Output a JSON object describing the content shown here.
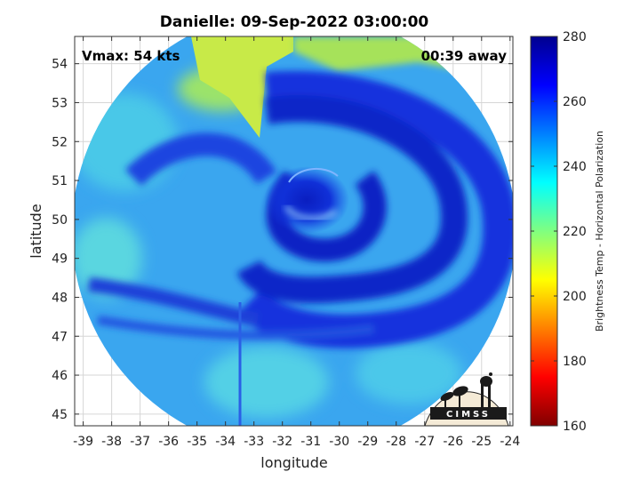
{
  "title": "Danielle: 09-Sep-2022 03:00:00",
  "vmax_label": "Vmax: 54 kts",
  "away_label": "00:39 away",
  "logo_text": "CIMSS",
  "x_axis": {
    "label": "longitude",
    "ticks": [
      -39,
      -38,
      -37,
      -36,
      -35,
      -34,
      -33,
      -32,
      -31,
      -30,
      -29,
      -28,
      -27,
      -26,
      -25,
      -24
    ],
    "range": [
      -39.3,
      -23.9
    ]
  },
  "y_axis": {
    "label": "latitude",
    "ticks": [
      45,
      46,
      47,
      48,
      49,
      50,
      51,
      52,
      53,
      54
    ],
    "range": [
      44.7,
      54.7
    ]
  },
  "colorbar": {
    "label": "Brightness Temp - Horizontal Polarization",
    "ticks": [
      160,
      180,
      200,
      220,
      240,
      260,
      280
    ],
    "range": [
      160,
      280
    ],
    "colors": [
      "#800000",
      "#ff0000",
      "#ff8000",
      "#ffff00",
      "#80ff80",
      "#00ffff",
      "#0080ff",
      "#0000ff",
      "#00008f"
    ]
  },
  "map": {
    "storm_center": {
      "lon": -31.1,
      "lat": 50.3
    },
    "swath_center": {
      "lon": -31.6,
      "lat": 49.7
    },
    "swath_radius_deg_lon": 7.8,
    "colors": {
      "background_field": "#3aa6ef",
      "cloud_band": "#1133dd",
      "cloud_core": "#0a1ec0",
      "clear_yellow": "#d8ee45",
      "clear_green": "#7fe07e",
      "eye_highlight": "#a8e6ff"
    }
  }
}
